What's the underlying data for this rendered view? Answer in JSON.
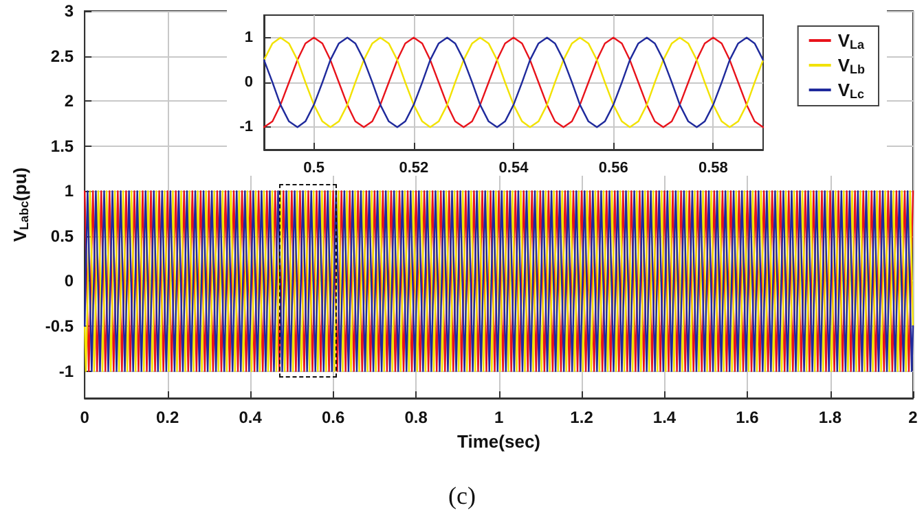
{
  "chart_data": [
    {
      "type": "line",
      "xlabel": "Time(sec)",
      "ylabel": "V$_{Labc}$(pu)",
      "annotations": [
        "(c)"
      ],
      "xlim": [
        0,
        2
      ],
      "xticks": [
        0,
        0.2,
        0.4,
        0.6,
        0.8,
        1,
        1.2,
        1.4,
        1.6,
        1.8,
        2
      ],
      "ylim": [
        -1.3,
        3
      ],
      "yticks": [
        -1,
        -0.5,
        0,
        0.5,
        1,
        1.5,
        2,
        2.5,
        3
      ],
      "grid": true,
      "marker": "none",
      "line_style": "solid",
      "series": [
        {
          "color": "#e8131b",
          "x": [
            0,
            0.01,
            0.02,
            0.03,
            0.04,
            0.05,
            0.06,
            0.07,
            0.08,
            0.09,
            0.1,
            0.11,
            0.12,
            0.13,
            0.14,
            0.15,
            0.16,
            0.17,
            0.18,
            0.19,
            0.2,
            0.21,
            0.22,
            0.23,
            0.24,
            0.25,
            0.26,
            0.27,
            0.28,
            0.29,
            0.3,
            0.31,
            0.32,
            0.33,
            0.34,
            0.35,
            0.36,
            0.37,
            0.38,
            0.39,
            0.4,
            0.41,
            0.42,
            0.43,
            0.44,
            0.45,
            0.46,
            0.47,
            0.48,
            0.49,
            0.5,
            0.51,
            0.52,
            0.53,
            0.54,
            0.55,
            0.56,
            0.57,
            0.58,
            0.59,
            0.6,
            0.61,
            0.62,
            0.63,
            0.64,
            0.65,
            0.66,
            0.67,
            0.68,
            0.69,
            0.7,
            0.71,
            0.72,
            0.73,
            0.74,
            0.75,
            0.76,
            0.77,
            0.78,
            0.79,
            0.8,
            0.81,
            0.82,
            0.83,
            0.84,
            0.85,
            0.86,
            0.87,
            0.88,
            0.89,
            0.9,
            0.91,
            0.92,
            0.93,
            0.94,
            0.95,
            0.96,
            0.97,
            0.98,
            0.99,
            1,
            1.01,
            1.02,
            1.03,
            1.04,
            1.05,
            1.06,
            1.07,
            1.08,
            1.09,
            1.1,
            1.11,
            1.12,
            1.13,
            1.14,
            1.15,
            1.16,
            1.17,
            1.18,
            1.19,
            1.2,
            1.21,
            1.22,
            1.23,
            1.24,
            1.25,
            1.26,
            1.27,
            1.28,
            1.29,
            1.3,
            1.31,
            1.32,
            1.33,
            1.34,
            1.35,
            1.36,
            1.37,
            1.38,
            1.39,
            1.4,
            1.41,
            1.42,
            1.43,
            1.44,
            1.45,
            1.46,
            1.47,
            1.48,
            1.49,
            1.5,
            1.51,
            1.52,
            1.53,
            1.54,
            1.55,
            1.56,
            1.57,
            1.58,
            1.59,
            1.6,
            1.61,
            1.62,
            1.63,
            1.64,
            1.65,
            1.66,
            1.67,
            1.68,
            1.69,
            1.7,
            1.71,
            1.72,
            1.73,
            1.74,
            1.75,
            1.76,
            1.77,
            1.78,
            1.79,
            1.8,
            1.81,
            1.82,
            1.83,
            1.84,
            1.85,
            1.86,
            1.87,
            1.88,
            1.89,
            1.9,
            1.91,
            1.92,
            1.93,
            1.94,
            1.95,
            1.96,
            1.97,
            1.98,
            1.99,
            2
          ],
          "values": [
            1,
            -1,
            1,
            -1,
            1,
            -1,
            1,
            -1,
            1,
            -1,
            1,
            -1,
            1,
            -1,
            1,
            -1,
            1,
            -1,
            1,
            -1,
            1,
            -1,
            1,
            -1,
            1,
            -1,
            1,
            -1,
            1,
            -1,
            1,
            -1,
            1,
            -1,
            1,
            -1,
            1,
            -1,
            1,
            -1,
            1,
            -1,
            1,
            -1,
            1,
            -1,
            1,
            -1,
            1,
            -1,
            1,
            -1,
            1,
            -1,
            1,
            -1,
            1,
            -1,
            1,
            -1,
            1,
            -1,
            1,
            -1,
            1,
            -1,
            1,
            -1,
            1,
            -1,
            1,
            -1,
            1,
            -1,
            1,
            -1,
            1,
            -1,
            1,
            -1,
            1,
            -1,
            1,
            -1,
            1,
            -1,
            1,
            -1,
            1,
            -1,
            1,
            -1,
            1,
            -1,
            1,
            -1,
            1,
            -1,
            1,
            -1,
            1,
            -1,
            1,
            -1,
            1,
            -1,
            1,
            -1,
            1,
            -1,
            1,
            -1,
            1,
            -1,
            1,
            -1,
            1,
            -1,
            1,
            -1,
            1,
            -1,
            1,
            -1,
            1,
            -1,
            1,
            -1,
            1,
            -1,
            1,
            -1,
            1,
            -1,
            1,
            -1,
            1,
            -1,
            1,
            -1,
            1,
            -1,
            1,
            -1,
            1,
            -1,
            1,
            -1,
            1,
            -1,
            1,
            -1,
            1,
            -1,
            1,
            -1,
            1,
            -1,
            1,
            -1,
            1,
            -1,
            1,
            -1,
            1,
            -1,
            1,
            -1,
            1,
            -1,
            1,
            -1,
            1,
            -1,
            1,
            -1,
            1,
            -1,
            1,
            -1,
            1,
            -1,
            1,
            -1,
            1,
            -1,
            1,
            -1,
            1,
            -1,
            1,
            -1,
            1,
            -1,
            1,
            -1,
            1,
            -1,
            1,
            -1,
            1
          ]
        },
        {
          "color": "#f2e200",
          "x": [
            0,
            0.003,
            0.013,
            0.023,
            0.033,
            0.043,
            0.053,
            0.063,
            0.073,
            0.083,
            0.093,
            0.103,
            0.113,
            0.123,
            0.133,
            0.143,
            0.153,
            0.163,
            0.173,
            0.183,
            0.193,
            0.203,
            0.213,
            0.223,
            0.233,
            0.243,
            0.253,
            0.263,
            0.273,
            0.283,
            0.293,
            0.303,
            0.313,
            0.323,
            0.333,
            0.343,
            0.353,
            0.363,
            0.373,
            0.383,
            0.393,
            0.403,
            0.413,
            0.423,
            0.433,
            0.443,
            0.453,
            0.463,
            0.473,
            0.483,
            0.493,
            0.503,
            0.513,
            0.523,
            0.533,
            0.543,
            0.553,
            0.563,
            0.573,
            0.583,
            0.593,
            0.603,
            0.613,
            0.623,
            0.633,
            0.643,
            0.653,
            0.663,
            0.673,
            0.683,
            0.693,
            0.703,
            0.713,
            0.723,
            0.733,
            0.743,
            0.753,
            0.763,
            0.773,
            0.783,
            0.793,
            0.803,
            0.813,
            0.823,
            0.833,
            0.843,
            0.853,
            0.863,
            0.873,
            0.883,
            0.893,
            0.903,
            0.913,
            0.923,
            0.933,
            0.943,
            0.953,
            0.963,
            0.973,
            0.983,
            0.993,
            1.003,
            1.013,
            1.023,
            1.033,
            1.043,
            1.053,
            1.063,
            1.073,
            1.083,
            1.093,
            1.103,
            1.113,
            1.123,
            1.133,
            1.143,
            1.153,
            1.163,
            1.173,
            1.183,
            1.193,
            1.203,
            1.213,
            1.223,
            1.233,
            1.243,
            1.253,
            1.263,
            1.273,
            1.283,
            1.293,
            1.303,
            1.313,
            1.323,
            1.333,
            1.343,
            1.353,
            1.363,
            1.373,
            1.383,
            1.393,
            1.403,
            1.413,
            1.423,
            1.433,
            1.443,
            1.453,
            1.463,
            1.473,
            1.483,
            1.493,
            1.503,
            1.513,
            1.523,
            1.533,
            1.543,
            1.553,
            1.563,
            1.573,
            1.583,
            1.593,
            1.603,
            1.613,
            1.623,
            1.633,
            1.643,
            1.653,
            1.663,
            1.673,
            1.683,
            1.693,
            1.703,
            1.713,
            1.723,
            1.733,
            1.743,
            1.753,
            1.763,
            1.773,
            1.783,
            1.793,
            1.803,
            1.813,
            1.823,
            1.833,
            1.843,
            1.853,
            1.863,
            1.873,
            1.883,
            1.893,
            1.903,
            1.913,
            1.923,
            1.933,
            1.943,
            1.953,
            1.963,
            1.973,
            1.983,
            1.993,
            2
          ],
          "values": [
            -0.5,
            -1,
            1,
            -1,
            1,
            -1,
            1,
            -1,
            1,
            -1,
            1,
            -1,
            1,
            -1,
            1,
            -1,
            1,
            -1,
            1,
            -1,
            1,
            -1,
            1,
            -1,
            1,
            -1,
            1,
            -1,
            1,
            -1,
            1,
            -1,
            1,
            -1,
            1,
            -1,
            1,
            -1,
            1,
            -1,
            1,
            -1,
            1,
            -1,
            1,
            -1,
            1,
            -1,
            1,
            -1,
            1,
            -1,
            1,
            -1,
            1,
            -1,
            1,
            -1,
            1,
            -1,
            1,
            -1,
            1,
            -1,
            1,
            -1,
            1,
            -1,
            1,
            -1,
            1,
            -1,
            1,
            -1,
            1,
            -1,
            1,
            -1,
            1,
            -1,
            1,
            -1,
            1,
            -1,
            1,
            -1,
            1,
            -1,
            1,
            -1,
            1,
            -1,
            1,
            -1,
            1,
            -1,
            1,
            -1,
            1,
            -1,
            1,
            -1,
            1,
            -1,
            1,
            -1,
            1,
            -1,
            1,
            -1,
            1,
            -1,
            1,
            -1,
            1,
            -1,
            1,
            -1,
            1,
            -1,
            1,
            -1,
            1,
            -1,
            1,
            -1,
            1,
            -1,
            1,
            -1,
            1,
            -1,
            1,
            -1,
            1,
            -1,
            1,
            -1,
            1,
            -1,
            1,
            -1,
            1,
            -1,
            1,
            -1,
            1,
            -1,
            1,
            -1,
            1,
            -1,
            1,
            -1,
            1,
            -1,
            1,
            -1,
            1,
            -1,
            1,
            -1,
            1,
            -1,
            1,
            -1,
            1,
            -1,
            1,
            -1,
            1,
            -1,
            1,
            -1,
            1,
            -1,
            1,
            -1,
            1,
            -1,
            1,
            -1,
            1,
            -1,
            1,
            -1,
            1,
            -1,
            1,
            -1,
            1,
            -1,
            1,
            -1,
            1,
            -1,
            1,
            -1,
            1,
            -1,
            1,
            -0.5
          ]
        },
        {
          "color": "#1f2a9c",
          "x": [
            0,
            0.007,
            0.017,
            0.027,
            0.037,
            0.047,
            0.057,
            0.067,
            0.077,
            0.087,
            0.097,
            0.107,
            0.117,
            0.127,
            0.137,
            0.147,
            0.157,
            0.167,
            0.177,
            0.187,
            0.197,
            0.207,
            0.217,
            0.227,
            0.237,
            0.247,
            0.257,
            0.267,
            0.277,
            0.287,
            0.297,
            0.307,
            0.317,
            0.327,
            0.337,
            0.347,
            0.357,
            0.367,
            0.377,
            0.387,
            0.397,
            0.407,
            0.417,
            0.427,
            0.437,
            0.447,
            0.457,
            0.467,
            0.477,
            0.487,
            0.497,
            0.507,
            0.517,
            0.527,
            0.537,
            0.547,
            0.557,
            0.567,
            0.577,
            0.587,
            0.597,
            0.607,
            0.617,
            0.627,
            0.637,
            0.647,
            0.657,
            0.667,
            0.677,
            0.687,
            0.697,
            0.707,
            0.717,
            0.727,
            0.737,
            0.747,
            0.757,
            0.767,
            0.777,
            0.787,
            0.797,
            0.807,
            0.817,
            0.827,
            0.837,
            0.847,
            0.857,
            0.867,
            0.877,
            0.887,
            0.897,
            0.907,
            0.917,
            0.927,
            0.937,
            0.947,
            0.957,
            0.967,
            0.977,
            0.987,
            0.997,
            1.007,
            1.017,
            1.027,
            1.037,
            1.047,
            1.057,
            1.067,
            1.077,
            1.087,
            1.097,
            1.107,
            1.117,
            1.127,
            1.137,
            1.147,
            1.157,
            1.167,
            1.177,
            1.187,
            1.197,
            1.207,
            1.217,
            1.227,
            1.237,
            1.247,
            1.257,
            1.267,
            1.277,
            1.287,
            1.297,
            1.307,
            1.317,
            1.327,
            1.337,
            1.347,
            1.357,
            1.367,
            1.377,
            1.387,
            1.397,
            1.407,
            1.417,
            1.427,
            1.437,
            1.447,
            1.457,
            1.467,
            1.477,
            1.487,
            1.497,
            1.507,
            1.517,
            1.527,
            1.537,
            1.547,
            1.557,
            1.567,
            1.577,
            1.587,
            1.597,
            1.607,
            1.617,
            1.627,
            1.637,
            1.647,
            1.657,
            1.667,
            1.677,
            1.687,
            1.697,
            1.707,
            1.717,
            1.727,
            1.737,
            1.747,
            1.757,
            1.767,
            1.777,
            1.787,
            1.797,
            1.807,
            1.817,
            1.827,
            1.837,
            1.847,
            1.857,
            1.867,
            1.877,
            1.887,
            1.897,
            1.907,
            1.917,
            1.927,
            1.937,
            1.947,
            1.957,
            1.967,
            1.977,
            1.987,
            1.997,
            2
          ],
          "values": [
            -0.5,
            1,
            -1,
            1,
            -1,
            1,
            -1,
            1,
            -1,
            1,
            -1,
            1,
            -1,
            1,
            -1,
            1,
            -1,
            1,
            -1,
            1,
            -1,
            1,
            -1,
            1,
            -1,
            1,
            -1,
            1,
            -1,
            1,
            -1,
            1,
            -1,
            1,
            -1,
            1,
            -1,
            1,
            -1,
            1,
            -1,
            1,
            -1,
            1,
            -1,
            1,
            -1,
            1,
            -1,
            1,
            -1,
            1,
            -1,
            1,
            -1,
            1,
            -1,
            1,
            -1,
            1,
            -1,
            1,
            -1,
            1,
            -1,
            1,
            -1,
            1,
            -1,
            1,
            -1,
            1,
            -1,
            1,
            -1,
            1,
            -1,
            1,
            -1,
            1,
            -1,
            1,
            -1,
            1,
            -1,
            1,
            -1,
            1,
            -1,
            1,
            -1,
            1,
            -1,
            1,
            -1,
            1,
            -1,
            1,
            -1,
            1,
            -1,
            1,
            -1,
            1,
            -1,
            1,
            -1,
            1,
            -1,
            1,
            -1,
            1,
            -1,
            1,
            -1,
            1,
            -1,
            1,
            -1,
            1,
            -1,
            1,
            -1,
            1,
            -1,
            1,
            -1,
            1,
            -1,
            1,
            -1,
            1,
            -1,
            1,
            -1,
            1,
            -1,
            1,
            -1,
            1,
            -1,
            1,
            -1,
            1,
            -1,
            1,
            -1,
            1,
            -1,
            1,
            -1,
            1,
            -1,
            1,
            -1,
            1,
            -1,
            1,
            -1,
            1,
            -1,
            1,
            -1,
            1,
            -1,
            1,
            -1,
            1,
            -1,
            1,
            -1,
            1,
            -1,
            1,
            -1,
            1,
            -1,
            1,
            -1,
            1,
            -1,
            1,
            -1,
            1,
            -1,
            1,
            -1,
            1,
            -1,
            1,
            -1,
            1,
            -1,
            1,
            -1,
            1,
            -1,
            1,
            -1,
            1,
            -1,
            -0.5
          ]
        }
      ]
    },
    {
      "type": "line",
      "xlim": [
        0.49,
        0.59
      ],
      "xticks": [
        0.5,
        0.52,
        0.54,
        0.56,
        0.58
      ],
      "ylim": [
        -1.5,
        1.5
      ],
      "yticks": [
        -1,
        0,
        1
      ],
      "grid": true,
      "legend": "right",
      "marker": "none",
      "line_style": "solid",
      "x": [
        0.49,
        0.4917,
        0.4933,
        0.495,
        0.4967,
        0.4983,
        0.5,
        0.5017,
        0.5033,
        0.505,
        0.5067,
        0.5083,
        0.51,
        0.5117,
        0.5133,
        0.515,
        0.5167,
        0.5183,
        0.52,
        0.5217,
        0.5233,
        0.525,
        0.5267,
        0.5283,
        0.53,
        0.5317,
        0.5333,
        0.535,
        0.5367,
        0.5383,
        0.54,
        0.5417,
        0.5433,
        0.545,
        0.5467,
        0.5483,
        0.55,
        0.5517,
        0.5533,
        0.555,
        0.5567,
        0.5583,
        0.56,
        0.5617,
        0.5633,
        0.565,
        0.5667,
        0.5683,
        0.57,
        0.5717,
        0.5733,
        0.575,
        0.5767,
        0.5783,
        0.58,
        0.5817,
        0.5833,
        0.585,
        0.5867,
        0.5883,
        0.59
      ],
      "series": [
        {
          "name": "V$_{La}$",
          "color": "#e8131b",
          "values": [
            -1,
            -0.87,
            -0.5,
            0,
            0.5,
            0.87,
            1,
            0.87,
            0.5,
            0,
            -0.5,
            -0.87,
            -1,
            -0.87,
            -0.5,
            0,
            0.5,
            0.87,
            1,
            0.87,
            0.5,
            0,
            -0.5,
            -0.87,
            -1,
            -0.87,
            -0.5,
            0,
            0.5,
            0.87,
            1,
            0.87,
            0.5,
            0,
            -0.5,
            -0.87,
            -1,
            -0.87,
            -0.5,
            0,
            0.5,
            0.87,
            1,
            0.87,
            0.5,
            0,
            -0.5,
            -0.87,
            -1,
            -0.87,
            -0.5,
            0,
            0.5,
            0.87,
            1,
            0.87,
            0.5,
            0,
            -0.5,
            -0.87,
            -1
          ]
        },
        {
          "name": "V$_{Lb}$",
          "color": "#f2e200",
          "values": [
            0.5,
            0.87,
            1,
            0.87,
            0.5,
            0,
            -0.5,
            -0.87,
            -1,
            -0.87,
            -0.5,
            0,
            0.5,
            0.87,
            1,
            0.87,
            0.5,
            0,
            -0.5,
            -0.87,
            -1,
            -0.87,
            -0.5,
            0,
            0.5,
            0.87,
            1,
            0.87,
            0.5,
            0,
            -0.5,
            -0.87,
            -1,
            -0.87,
            -0.5,
            0,
            0.5,
            0.87,
            1,
            0.87,
            0.5,
            0,
            -0.5,
            -0.87,
            -1,
            -0.87,
            -0.5,
            0,
            0.5,
            0.87,
            1,
            0.87,
            0.5,
            0,
            -0.5,
            -0.87,
            -1,
            -0.87,
            -0.5,
            0,
            0.5
          ]
        },
        {
          "name": "V$_{Lc}$",
          "color": "#1f2a9c",
          "values": [
            0.5,
            0,
            -0.5,
            -0.87,
            -1,
            -0.87,
            -0.5,
            0,
            0.5,
            0.87,
            1,
            0.87,
            0.5,
            0,
            -0.5,
            -0.87,
            -1,
            -0.87,
            -0.5,
            0,
            0.5,
            0.87,
            1,
            0.87,
            0.5,
            0,
            -0.5,
            -0.87,
            -1,
            -0.87,
            -0.5,
            0,
            0.5,
            0.87,
            1,
            0.87,
            0.5,
            0,
            -0.5,
            -0.87,
            -1,
            -0.87,
            -0.5,
            0,
            0.5,
            0.87,
            1,
            0.87,
            0.5,
            0,
            -0.5,
            -0.87,
            -1,
            -0.87,
            -0.5,
            0,
            0.5,
            0.87,
            1,
            0.87,
            0.5
          ]
        }
      ]
    }
  ]
}
